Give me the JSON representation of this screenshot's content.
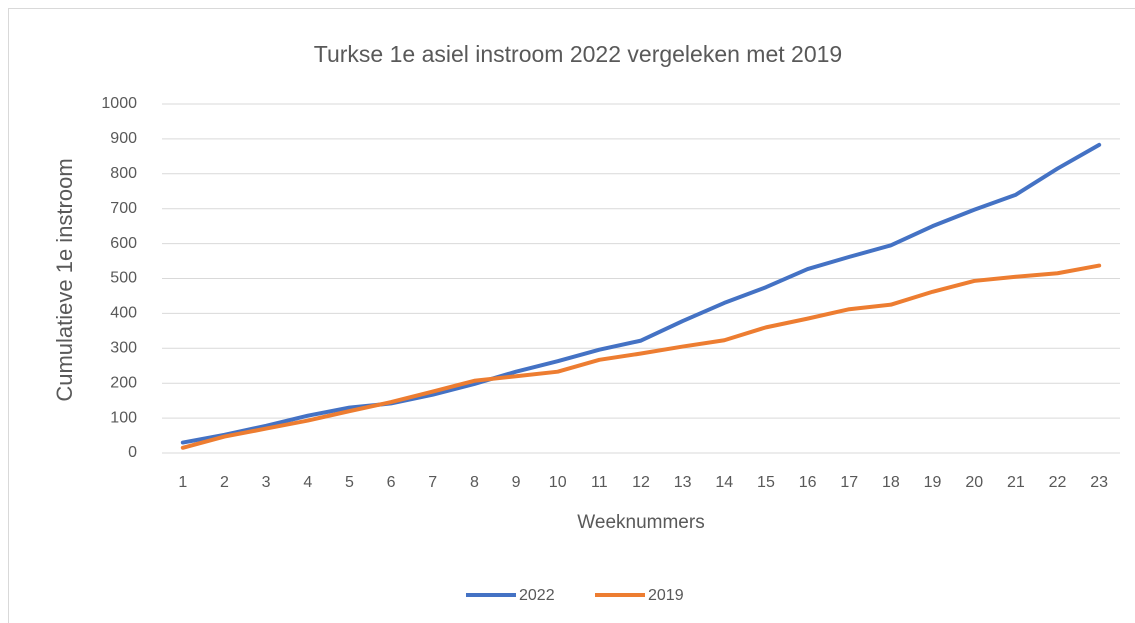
{
  "chart_data": {
    "type": "line",
    "title": "Turkse 1e asiel instroom 2022 vergeleken met 2019",
    "x_label": "Weeknummers",
    "y_label": "Cumulatieve  1e instroom",
    "categories": [
      1,
      2,
      3,
      4,
      5,
      6,
      7,
      8,
      9,
      10,
      11,
      12,
      13,
      14,
      15,
      16,
      17,
      18,
      19,
      20,
      21,
      22,
      23
    ],
    "series": [
      {
        "name": "2022",
        "color": "#4472c4",
        "values": [
          30,
          52,
          78,
          107,
          130,
          142,
          167,
          198,
          233,
          263,
          296,
          322,
          378,
          430,
          475,
          527,
          562,
          595,
          650,
          697,
          740,
          815,
          883
        ]
      },
      {
        "name": "2019",
        "color": "#ed7d31",
        "values": [
          15,
          47,
          70,
          93,
          120,
          146,
          176,
          207,
          220,
          233,
          267,
          285,
          305,
          323,
          360,
          385,
          412,
          425,
          462,
          493,
          505,
          515,
          537
        ]
      }
    ],
    "ylim": [
      0,
      1000
    ],
    "yticks": [
      0,
      100,
      200,
      300,
      400,
      500,
      600,
      700,
      800,
      900,
      1000
    ],
    "grid": true,
    "legend": "bottom"
  }
}
